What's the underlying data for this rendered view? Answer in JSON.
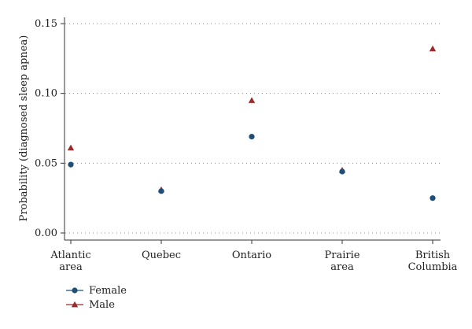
{
  "chart_data": {
    "type": "scatter",
    "title": "",
    "xlabel": "",
    "ylabel": "Probability (diagnosed sleep apnea)",
    "categories": [
      [
        "Atlantic",
        "area"
      ],
      [
        "Quebec"
      ],
      [
        "Ontario"
      ],
      [
        "Prairie",
        "area"
      ],
      [
        "British",
        "Columbia"
      ]
    ],
    "ylim": [
      0,
      0.15
    ],
    "yticks": [
      0,
      0.05,
      0.1,
      0.15
    ],
    "ytick_labels": [
      "0.00",
      "0.05",
      "0.10",
      "0.15"
    ],
    "grid": "horizontal-dotted",
    "legend_position": "bottom-left",
    "series": [
      {
        "name": "Female",
        "marker": "circle",
        "color": "#1f4e79",
        "values": [
          0.049,
          0.03,
          0.069,
          0.044,
          0.025
        ]
      },
      {
        "name": "Male",
        "marker": "triangle",
        "color": "#9b2a2a",
        "values": [
          0.061,
          0.031,
          0.095,
          0.045,
          0.132
        ]
      }
    ]
  }
}
